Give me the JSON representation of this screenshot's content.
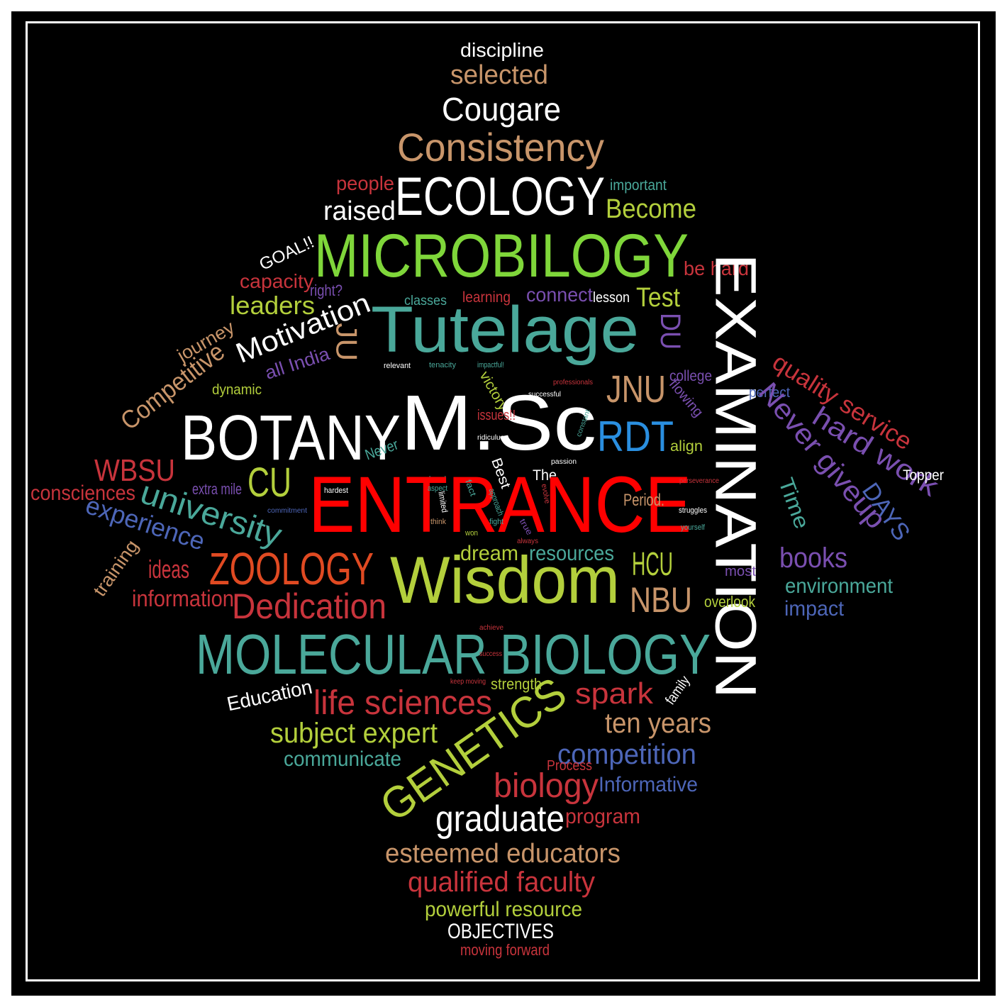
{
  "colors": {
    "background": "#000000",
    "frame": "#ffffff",
    "white": "#ffffff",
    "red": "#e8141c",
    "tan": "#c8956a",
    "teal": "#4aa89a",
    "lime": "#b3cf3c",
    "green": "#7fd63a",
    "crimson": "#c8343c",
    "purple": "#7a4fb0",
    "blue": "#4d66b8",
    "orange": "#e04a22",
    "sky": "#2a8fe0",
    "brightRed": "#ff0000"
  },
  "words": [
    {
      "text": "discipline",
      "color": "white"
    },
    {
      "text": "selected",
      "color": "tan"
    },
    {
      "text": "Cougare",
      "color": "white"
    },
    {
      "text": "Consistency",
      "color": "tan"
    },
    {
      "text": "people",
      "color": "crimson"
    },
    {
      "text": "ECOLOGY",
      "color": "white"
    },
    {
      "text": "important",
      "color": "teal"
    },
    {
      "text": "raised",
      "color": "white"
    },
    {
      "text": "Become",
      "color": "lime"
    },
    {
      "text": "MICROBILOGY",
      "color": "green"
    },
    {
      "text": "GOAL!!",
      "color": "white"
    },
    {
      "text": "be hard",
      "color": "crimson"
    },
    {
      "text": "capacity",
      "color": "crimson"
    },
    {
      "text": "right?",
      "color": "purple"
    },
    {
      "text": "classes",
      "color": "teal"
    },
    {
      "text": "learning",
      "color": "crimson"
    },
    {
      "text": "connect",
      "color": "purple"
    },
    {
      "text": "lesson",
      "color": "white"
    },
    {
      "text": "Test",
      "color": "lime"
    },
    {
      "text": "leaders",
      "color": "lime"
    },
    {
      "text": "Tutelage",
      "color": "teal"
    },
    {
      "text": "Motivation",
      "color": "white"
    },
    {
      "text": "journey",
      "color": "tan"
    },
    {
      "text": "Competitive",
      "color": "tan"
    },
    {
      "text": "JU",
      "color": "tan"
    },
    {
      "text": "DU",
      "color": "purple"
    },
    {
      "text": "EXAMINATION",
      "color": "white"
    },
    {
      "text": "quality service",
      "color": "crimson"
    },
    {
      "text": "all India",
      "color": "purple"
    },
    {
      "text": "relevant",
      "color": "white"
    },
    {
      "text": "tenacity",
      "color": "teal"
    },
    {
      "text": "impactful!",
      "color": "teal"
    },
    {
      "text": "JNU",
      "color": "tan"
    },
    {
      "text": "college",
      "color": "purple"
    },
    {
      "text": "dynamic",
      "color": "lime"
    },
    {
      "text": "victory",
      "color": "lime"
    },
    {
      "text": "professionals",
      "color": "crimson"
    },
    {
      "text": "successful",
      "color": "white"
    },
    {
      "text": "flowing",
      "color": "purple"
    },
    {
      "text": "perfect",
      "color": "blue"
    },
    {
      "text": "BOTANY",
      "color": "white"
    },
    {
      "text": "M.Sc",
      "color": "white"
    },
    {
      "text": "issues!!",
      "color": "crimson"
    },
    {
      "text": "constant",
      "color": "teal"
    },
    {
      "text": "RDT",
      "color": "sky"
    },
    {
      "text": "Never giveup",
      "color": "purple"
    },
    {
      "text": "hard work",
      "color": "purple"
    },
    {
      "text": "ridiculus",
      "color": "white"
    },
    {
      "text": "Never",
      "color": "teal"
    },
    {
      "text": "passion",
      "color": "white"
    },
    {
      "text": "align",
      "color": "lime"
    },
    {
      "text": "WBSU",
      "color": "crimson"
    },
    {
      "text": "CU",
      "color": "lime"
    },
    {
      "text": "Best",
      "color": "white"
    },
    {
      "text": "The",
      "color": "white"
    },
    {
      "text": "loved",
      "color": "teal"
    },
    {
      "text": "ENTRANCE",
      "color": "brightRed"
    },
    {
      "text": "perseverance",
      "color": "crimson"
    },
    {
      "text": "Topper",
      "color": "white"
    },
    {
      "text": "consciences",
      "color": "crimson"
    },
    {
      "text": "extra mile",
      "color": "purple"
    },
    {
      "text": "aspect",
      "color": "teal"
    },
    {
      "text": "fact",
      "color": "teal"
    },
    {
      "text": "evolve",
      "color": "crimson"
    },
    {
      "text": "hardest",
      "color": "white"
    },
    {
      "text": "limited",
      "color": "white"
    },
    {
      "text": "approach",
      "color": "teal"
    },
    {
      "text": "Period.",
      "color": "tan"
    },
    {
      "text": "Time",
      "color": "teal"
    },
    {
      "text": "DAYS",
      "color": "blue"
    },
    {
      "text": "university",
      "color": "teal"
    },
    {
      "text": "commitment",
      "color": "blue"
    },
    {
      "text": "think",
      "color": "tan"
    },
    {
      "text": "fight",
      "color": "teal"
    },
    {
      "text": "struggles",
      "color": "white"
    },
    {
      "text": "experience",
      "color": "blue"
    },
    {
      "text": "true",
      "color": "purple"
    },
    {
      "text": "yourself",
      "color": "teal"
    },
    {
      "text": "won",
      "color": "lime"
    },
    {
      "text": "always",
      "color": "crimson"
    },
    {
      "text": "dream",
      "color": "lime"
    },
    {
      "text": "resources",
      "color": "teal"
    },
    {
      "text": "HCU",
      "color": "lime"
    },
    {
      "text": "books",
      "color": "purple"
    },
    {
      "text": "training",
      "color": "tan"
    },
    {
      "text": "ideas",
      "color": "crimson"
    },
    {
      "text": "ZOOLOGY",
      "color": "orange"
    },
    {
      "text": "Wisdom",
      "color": "lime"
    },
    {
      "text": "most",
      "color": "purple"
    },
    {
      "text": "environment",
      "color": "teal"
    },
    {
      "text": "information",
      "color": "crimson"
    },
    {
      "text": "Dedication",
      "color": "crimson"
    },
    {
      "text": "NBU",
      "color": "tan"
    },
    {
      "text": "overlook",
      "color": "lime"
    },
    {
      "text": "impact",
      "color": "blue"
    },
    {
      "text": "achieve",
      "color": "crimson"
    },
    {
      "text": "MOLECULAR BIOLOGY",
      "color": "teal"
    },
    {
      "text": "success",
      "color": "crimson"
    },
    {
      "text": "keep moving",
      "color": "crimson"
    },
    {
      "text": "strength",
      "color": "lime"
    },
    {
      "text": "Education",
      "color": "white"
    },
    {
      "text": "family",
      "color": "white"
    },
    {
      "text": "spark",
      "color": "crimson"
    },
    {
      "text": "life sciences",
      "color": "crimson"
    },
    {
      "text": "ten years",
      "color": "tan"
    },
    {
      "text": "subject expert",
      "color": "lime"
    },
    {
      "text": "GENETICS",
      "color": "lime"
    },
    {
      "text": "competition",
      "color": "blue"
    },
    {
      "text": "communicate",
      "color": "teal"
    },
    {
      "text": "Process",
      "color": "crimson"
    },
    {
      "text": "biology",
      "color": "crimson"
    },
    {
      "text": "Informative",
      "color": "blue"
    },
    {
      "text": "graduate",
      "color": "white"
    },
    {
      "text": "program",
      "color": "crimson"
    },
    {
      "text": "esteemed educators",
      "color": "tan"
    },
    {
      "text": "qualified faculty",
      "color": "crimson"
    },
    {
      "text": "powerful resource",
      "color": "lime"
    },
    {
      "text": "OBJECTIVES",
      "color": "white"
    },
    {
      "text": "moving forward",
      "color": "crimson"
    }
  ]
}
